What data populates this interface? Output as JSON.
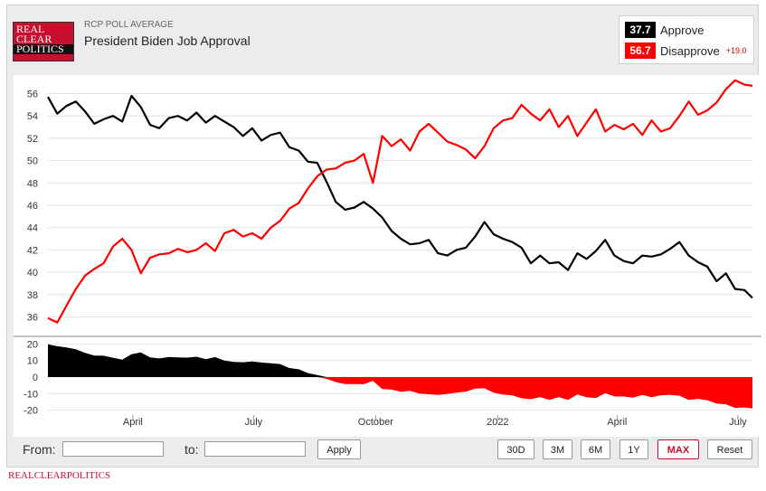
{
  "header": {
    "logo_lines": [
      "REAL",
      "CLEAR",
      "POLITICS"
    ],
    "subtitle": "RCP POLL AVERAGE",
    "title": "President Biden Job Approval"
  },
  "legend": {
    "approve_value": "37.7",
    "approve_label": "Approve",
    "disapprove_value": "56.7",
    "disapprove_label": "Disapprove",
    "spread": "+19.0",
    "approve_color": "#000000",
    "disapprove_color": "#ff0000"
  },
  "controls": {
    "from_label": "From:",
    "to_label": "to:",
    "apply_label": "Apply",
    "ranges": [
      "30D",
      "3M",
      "6M",
      "1Y",
      "MAX"
    ],
    "active_range": "MAX",
    "reset_label": "Reset"
  },
  "footer": {
    "brand": "REALCLEARPOLITICS"
  },
  "chart_data": {
    "type": "line",
    "title": "President Biden Job Approval",
    "x_range": [
      "2021-01-27",
      "2022-07-12"
    ],
    "x_ticks": [
      {
        "label": "April",
        "date": "2021-04-01"
      },
      {
        "label": "July",
        "date": "2021-07-01"
      },
      {
        "label": "October",
        "date": "2021-10-01"
      },
      {
        "label": "2022",
        "date": "2022-01-01"
      },
      {
        "label": "April",
        "date": "2022-04-01"
      },
      {
        "label": "July",
        "date": "2022-07-01"
      }
    ],
    "ylim": [
      34.5,
      57.5
    ],
    "y_ticks": [
      36,
      38,
      40,
      42,
      44,
      46,
      48,
      50,
      52,
      54,
      56
    ],
    "grid": true,
    "series": [
      {
        "name": "Approve",
        "color": "#000000",
        "points": [
          [
            "2021-01-27",
            55.7
          ],
          [
            "2021-02-03",
            54.2
          ],
          [
            "2021-02-10",
            54.9
          ],
          [
            "2021-02-17",
            55.3
          ],
          [
            "2021-02-24",
            54.4
          ],
          [
            "2021-03-03",
            53.3
          ],
          [
            "2021-03-10",
            53.7
          ],
          [
            "2021-03-17",
            54.0
          ],
          [
            "2021-03-24",
            53.5
          ],
          [
            "2021-03-31",
            55.8
          ],
          [
            "2021-04-07",
            54.8
          ],
          [
            "2021-04-14",
            53.2
          ],
          [
            "2021-04-21",
            52.9
          ],
          [
            "2021-04-28",
            53.8
          ],
          [
            "2021-05-05",
            54.0
          ],
          [
            "2021-05-12",
            53.6
          ],
          [
            "2021-05-19",
            54.3
          ],
          [
            "2021-05-26",
            53.4
          ],
          [
            "2021-06-02",
            54.0
          ],
          [
            "2021-06-09",
            53.5
          ],
          [
            "2021-06-16",
            53.0
          ],
          [
            "2021-06-23",
            52.2
          ],
          [
            "2021-06-30",
            52.9
          ],
          [
            "2021-07-07",
            51.8
          ],
          [
            "2021-07-14",
            52.3
          ],
          [
            "2021-07-21",
            52.5
          ],
          [
            "2021-07-28",
            51.2
          ],
          [
            "2021-08-04",
            50.9
          ],
          [
            "2021-08-11",
            49.9
          ],
          [
            "2021-08-18",
            49.8
          ],
          [
            "2021-08-25",
            48.1
          ],
          [
            "2021-09-01",
            46.3
          ],
          [
            "2021-09-08",
            45.6
          ],
          [
            "2021-09-15",
            45.8
          ],
          [
            "2021-09-22",
            46.3
          ],
          [
            "2021-09-29",
            45.7
          ],
          [
            "2021-10-06",
            44.9
          ],
          [
            "2021-10-13",
            43.7
          ],
          [
            "2021-10-20",
            43.0
          ],
          [
            "2021-10-27",
            42.5
          ],
          [
            "2021-11-03",
            42.6
          ],
          [
            "2021-11-10",
            42.9
          ],
          [
            "2021-11-17",
            41.7
          ],
          [
            "2021-11-24",
            41.5
          ],
          [
            "2021-12-01",
            42.0
          ],
          [
            "2021-12-08",
            42.2
          ],
          [
            "2021-12-15",
            43.2
          ],
          [
            "2021-12-22",
            44.5
          ],
          [
            "2021-12-29",
            43.4
          ],
          [
            "2022-01-05",
            43.0
          ],
          [
            "2022-01-12",
            42.7
          ],
          [
            "2022-01-19",
            42.2
          ],
          [
            "2022-01-26",
            40.8
          ],
          [
            "2022-02-02",
            41.5
          ],
          [
            "2022-02-09",
            40.8
          ],
          [
            "2022-02-16",
            40.9
          ],
          [
            "2022-02-23",
            40.2
          ],
          [
            "2022-03-02",
            41.7
          ],
          [
            "2022-03-09",
            41.2
          ],
          [
            "2022-03-16",
            41.9
          ],
          [
            "2022-03-23",
            42.9
          ],
          [
            "2022-03-30",
            41.5
          ],
          [
            "2022-04-06",
            41.0
          ],
          [
            "2022-04-13",
            40.8
          ],
          [
            "2022-04-20",
            41.5
          ],
          [
            "2022-04-27",
            41.4
          ],
          [
            "2022-05-04",
            41.6
          ],
          [
            "2022-05-11",
            42.1
          ],
          [
            "2022-05-18",
            42.7
          ],
          [
            "2022-05-25",
            41.5
          ],
          [
            "2022-06-01",
            40.9
          ],
          [
            "2022-06-08",
            40.5
          ],
          [
            "2022-06-15",
            39.2
          ],
          [
            "2022-06-22",
            39.9
          ],
          [
            "2022-06-29",
            38.5
          ],
          [
            "2022-07-06",
            38.4
          ],
          [
            "2022-07-12",
            37.7
          ]
        ]
      },
      {
        "name": "Disapprove",
        "color": "#ff0000",
        "points": [
          [
            "2021-01-27",
            35.9
          ],
          [
            "2021-02-03",
            35.5
          ],
          [
            "2021-02-10",
            37.0
          ],
          [
            "2021-02-17",
            38.5
          ],
          [
            "2021-02-24",
            39.7
          ],
          [
            "2021-03-03",
            40.3
          ],
          [
            "2021-03-10",
            40.8
          ],
          [
            "2021-03-17",
            42.3
          ],
          [
            "2021-03-24",
            43.0
          ],
          [
            "2021-03-31",
            42.0
          ],
          [
            "2021-04-07",
            39.9
          ],
          [
            "2021-04-14",
            41.3
          ],
          [
            "2021-04-21",
            41.6
          ],
          [
            "2021-04-28",
            41.7
          ],
          [
            "2021-05-05",
            42.1
          ],
          [
            "2021-05-12",
            41.8
          ],
          [
            "2021-05-19",
            42.0
          ],
          [
            "2021-05-26",
            42.6
          ],
          [
            "2021-06-02",
            41.9
          ],
          [
            "2021-06-09",
            43.5
          ],
          [
            "2021-06-16",
            43.8
          ],
          [
            "2021-06-23",
            43.2
          ],
          [
            "2021-06-30",
            43.5
          ],
          [
            "2021-07-07",
            43.0
          ],
          [
            "2021-07-14",
            44.0
          ],
          [
            "2021-07-21",
            44.6
          ],
          [
            "2021-07-28",
            45.7
          ],
          [
            "2021-08-04",
            46.2
          ],
          [
            "2021-08-11",
            47.5
          ],
          [
            "2021-08-18",
            48.6
          ],
          [
            "2021-08-25",
            49.2
          ],
          [
            "2021-09-01",
            49.3
          ],
          [
            "2021-09-08",
            49.8
          ],
          [
            "2021-09-15",
            50.0
          ],
          [
            "2021-09-22",
            50.6
          ],
          [
            "2021-09-29",
            48.0
          ],
          [
            "2021-10-06",
            52.2
          ],
          [
            "2021-10-13",
            51.3
          ],
          [
            "2021-10-20",
            51.9
          ],
          [
            "2021-10-27",
            50.9
          ],
          [
            "2021-11-03",
            52.6
          ],
          [
            "2021-11-10",
            53.3
          ],
          [
            "2021-11-17",
            52.5
          ],
          [
            "2021-11-24",
            51.7
          ],
          [
            "2021-12-01",
            51.4
          ],
          [
            "2021-12-08",
            51.0
          ],
          [
            "2021-12-15",
            50.2
          ],
          [
            "2021-12-22",
            51.3
          ],
          [
            "2021-12-29",
            52.9
          ],
          [
            "2022-01-05",
            53.6
          ],
          [
            "2022-01-12",
            53.8
          ],
          [
            "2022-01-19",
            55.0
          ],
          [
            "2022-01-26",
            54.2
          ],
          [
            "2022-02-02",
            53.6
          ],
          [
            "2022-02-09",
            54.6
          ],
          [
            "2022-02-16",
            53.0
          ],
          [
            "2022-02-23",
            54.0
          ],
          [
            "2022-03-02",
            52.2
          ],
          [
            "2022-03-09",
            53.4
          ],
          [
            "2022-03-16",
            54.6
          ],
          [
            "2022-03-23",
            52.6
          ],
          [
            "2022-03-30",
            53.2
          ],
          [
            "2022-04-06",
            52.8
          ],
          [
            "2022-04-13",
            53.3
          ],
          [
            "2022-04-20",
            52.3
          ],
          [
            "2022-04-27",
            53.6
          ],
          [
            "2022-05-04",
            52.6
          ],
          [
            "2022-05-11",
            52.9
          ],
          [
            "2022-05-18",
            54.0
          ],
          [
            "2022-05-25",
            55.3
          ],
          [
            "2022-06-01",
            54.1
          ],
          [
            "2022-06-08",
            54.5
          ],
          [
            "2022-06-15",
            55.2
          ],
          [
            "2022-06-22",
            56.4
          ],
          [
            "2022-06-29",
            57.2
          ],
          [
            "2022-07-06",
            56.8
          ],
          [
            "2022-07-12",
            56.7
          ]
        ]
      }
    ],
    "spread_panel": {
      "type": "area",
      "ylim": [
        -23,
        23
      ],
      "y_ticks": [
        20,
        10,
        0,
        -10,
        -20
      ],
      "positive_color": "#000000",
      "negative_color": "#ff0000",
      "definition": "Approve minus Disapprove"
    }
  }
}
